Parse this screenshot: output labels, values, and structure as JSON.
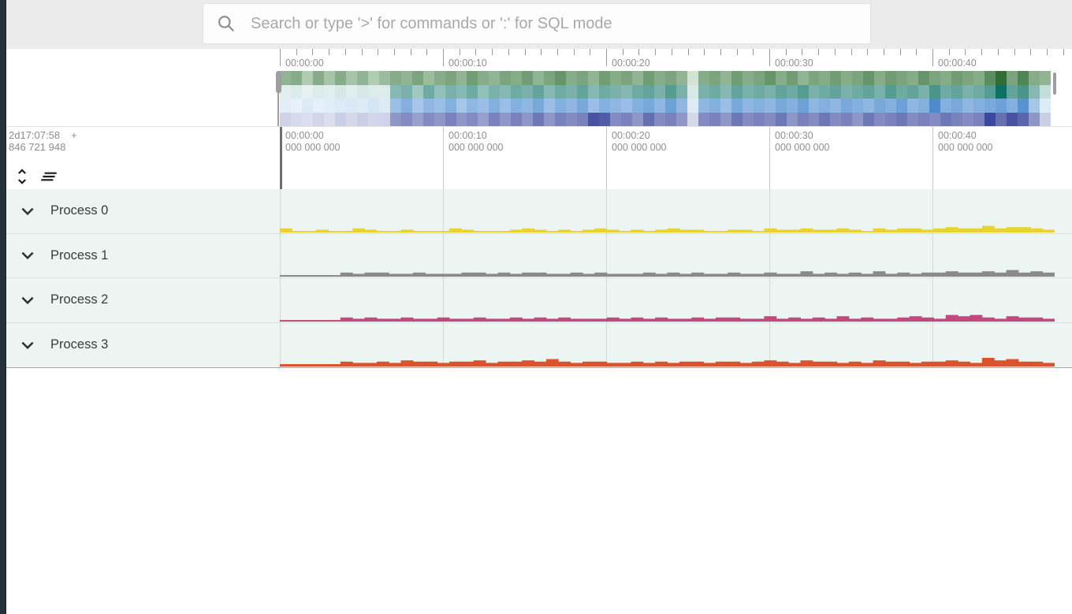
{
  "topbar": {
    "search_placeholder": "Search or type '>' for commands or ':' for SQL mode",
    "search_icon": "magnifier"
  },
  "overview": {
    "ruler_labels": [
      "00:00:00",
      "00:00:10",
      "00:00:20",
      "00:00:30",
      "00:00:40"
    ],
    "seconds_per_major": 10,
    "heatmap_rows": [
      {
        "name": "load-row-green",
        "light": "#f2faf2",
        "dark": "#1b5e20",
        "values": [
          0.45,
          0.5,
          0.3,
          0.5,
          0.35,
          0.5,
          0.35,
          0.45,
          0.3,
          0.4,
          0.5,
          0.45,
          0.55,
          0.4,
          0.5,
          0.55,
          0.45,
          0.6,
          0.5,
          0.45,
          0.55,
          0.5,
          0.6,
          0.45,
          0.55,
          0.65,
          0.5,
          0.55,
          0.45,
          0.6,
          0.5,
          0.55,
          0.45,
          0.6,
          0.5,
          0.55,
          0.45,
          0.15,
          0.5,
          0.55,
          0.45,
          0.6,
          0.5,
          0.55,
          0.65,
          0.5,
          0.6,
          0.45,
          0.55,
          0.5,
          0.6,
          0.5,
          0.55,
          0.65,
          0.5,
          0.6,
          0.55,
          0.5,
          0.65,
          0.55,
          0.5,
          0.6,
          0.55,
          0.5,
          0.7,
          0.9,
          0.55,
          0.75,
          0.5,
          0.45
        ]
      },
      {
        "name": "load-row-teal",
        "light": "#f4fbfa",
        "dark": "#00695c",
        "values": [
          0.08,
          0.1,
          0.06,
          0.1,
          0.08,
          0.12,
          0.08,
          0.12,
          0.1,
          0.1,
          0.45,
          0.5,
          0.35,
          0.55,
          0.4,
          0.5,
          0.45,
          0.55,
          0.4,
          0.5,
          0.45,
          0.55,
          0.5,
          0.6,
          0.45,
          0.55,
          0.5,
          0.6,
          0.45,
          0.55,
          0.5,
          0.45,
          0.55,
          0.6,
          0.5,
          0.65,
          0.5,
          0.12,
          0.5,
          0.55,
          0.45,
          0.6,
          0.5,
          0.55,
          0.5,
          0.6,
          0.55,
          0.65,
          0.5,
          0.55,
          0.6,
          0.5,
          0.55,
          0.6,
          0.5,
          0.65,
          0.55,
          0.6,
          0.5,
          0.7,
          0.55,
          0.6,
          0.5,
          0.55,
          0.65,
          0.95,
          0.6,
          0.7,
          0.45,
          0.2
        ]
      },
      {
        "name": "load-row-blue",
        "light": "#f3fafd",
        "dark": "#1565c0",
        "values": [
          0.08,
          0.06,
          0.1,
          0.07,
          0.08,
          0.1,
          0.12,
          0.1,
          0.14,
          0.1,
          0.4,
          0.5,
          0.35,
          0.45,
          0.4,
          0.5,
          0.35,
          0.45,
          0.4,
          0.5,
          0.4,
          0.5,
          0.45,
          0.55,
          0.4,
          0.5,
          0.45,
          0.55,
          0.4,
          0.5,
          0.45,
          0.4,
          0.5,
          0.55,
          0.45,
          0.6,
          0.45,
          0.1,
          0.45,
          0.5,
          0.4,
          0.55,
          0.45,
          0.5,
          0.45,
          0.55,
          0.5,
          0.6,
          0.45,
          0.5,
          0.45,
          0.55,
          0.5,
          0.45,
          0.55,
          0.5,
          0.6,
          0.45,
          0.5,
          0.75,
          0.5,
          0.55,
          0.45,
          0.5,
          0.55,
          0.6,
          0.5,
          0.7,
          0.35,
          0.1
        ]
      },
      {
        "name": "load-row-indigo",
        "light": "#f4f5fb",
        "dark": "#283593",
        "values": [
          0.18,
          0.14,
          0.12,
          0.16,
          0.12,
          0.2,
          0.15,
          0.2,
          0.16,
          0.18,
          0.5,
          0.55,
          0.45,
          0.55,
          0.5,
          0.6,
          0.5,
          0.55,
          0.45,
          0.6,
          0.5,
          0.6,
          0.5,
          0.65,
          0.5,
          0.6,
          0.55,
          0.6,
          0.85,
          0.8,
          0.55,
          0.6,
          0.5,
          0.7,
          0.55,
          0.6,
          0.5,
          0.15,
          0.55,
          0.6,
          0.5,
          0.65,
          0.55,
          0.6,
          0.55,
          0.65,
          0.5,
          0.6,
          0.55,
          0.65,
          0.55,
          0.6,
          0.5,
          0.65,
          0.55,
          0.6,
          0.65,
          0.55,
          0.6,
          0.55,
          0.65,
          0.6,
          0.55,
          0.6,
          0.9,
          0.7,
          0.85,
          0.75,
          0.5,
          0.2
        ]
      }
    ]
  },
  "time_axis": {
    "offset_hms": "2d17:07:58",
    "offset_plus": "+",
    "offset_ns": "846 721 948",
    "labels": [
      {
        "time": "00:00:00",
        "ns": "000 000 000"
      },
      {
        "time": "00:00:10",
        "ns": "000 000 000"
      },
      {
        "time": "00:00:20",
        "ns": "000 000 000"
      },
      {
        "time": "00:00:30",
        "ns": "000 000 000"
      },
      {
        "time": "00:00:40",
        "ns": "000 000 000"
      }
    ],
    "buttons": [
      {
        "icon": "unfold-more",
        "name": "expand-all-tracks-button"
      },
      {
        "icon": "clear-all",
        "name": "clear-all-button"
      }
    ]
  },
  "tracks": [
    {
      "label": "Process 0",
      "color": "#e8d330",
      "values": [
        2,
        0,
        0,
        1,
        0,
        0,
        2,
        1,
        0,
        0,
        1,
        0,
        0,
        0,
        2,
        1,
        0,
        0,
        0,
        1,
        2,
        1,
        0,
        1,
        0,
        1,
        2,
        1,
        0,
        1,
        0,
        1,
        2,
        1,
        1,
        0,
        0,
        1,
        1,
        0,
        2,
        1,
        1,
        2,
        1,
        1,
        2,
        1,
        0,
        2,
        1,
        2,
        2,
        1,
        2,
        3,
        2,
        2,
        4,
        2,
        3,
        3,
        2,
        1
      ]
    },
    {
      "label": "Process 1",
      "color": "#8a8a8a",
      "values": [
        0,
        0,
        0,
        0,
        0,
        2,
        1,
        2,
        2,
        1,
        1,
        2,
        1,
        1,
        1,
        2,
        2,
        1,
        2,
        1,
        2,
        2,
        1,
        1,
        2,
        1,
        2,
        1,
        1,
        1,
        2,
        1,
        2,
        1,
        2,
        1,
        1,
        2,
        1,
        1,
        2,
        1,
        1,
        3,
        1,
        2,
        1,
        2,
        1,
        3,
        1,
        2,
        1,
        2,
        2,
        3,
        2,
        2,
        3,
        2,
        4,
        2,
        3,
        2
      ]
    },
    {
      "label": "Process 2",
      "color": "#c2487f",
      "values": [
        0,
        0,
        0,
        0,
        0,
        2,
        1,
        2,
        1,
        1,
        2,
        1,
        1,
        2,
        1,
        1,
        2,
        1,
        1,
        2,
        1,
        2,
        1,
        2,
        1,
        1,
        1,
        2,
        1,
        2,
        1,
        2,
        1,
        1,
        2,
        1,
        2,
        2,
        1,
        1,
        3,
        1,
        2,
        1,
        2,
        1,
        3,
        1,
        2,
        1,
        1,
        2,
        3,
        2,
        1,
        4,
        3,
        4,
        2,
        1,
        3,
        2,
        2,
        1
      ]
    },
    {
      "label": "Process 3",
      "color": "#d9532f",
      "values": [
        0,
        0,
        0,
        0,
        0,
        2,
        1,
        1,
        2,
        1,
        3,
        2,
        2,
        1,
        2,
        2,
        3,
        1,
        2,
        2,
        3,
        2,
        4,
        2,
        1,
        2,
        2,
        1,
        1,
        2,
        1,
        2,
        1,
        2,
        2,
        1,
        2,
        2,
        1,
        2,
        3,
        2,
        1,
        3,
        2,
        2,
        1,
        2,
        1,
        3,
        2,
        2,
        1,
        2,
        2,
        3,
        2,
        1,
        5,
        3,
        4,
        2,
        2,
        1
      ]
    }
  ],
  "colors": {
    "sidebar": "#262f3c",
    "topbar_bg": "#ebebeb",
    "track_row_bg": "#ecf5f1",
    "handle": "#9e9e9e",
    "tick": "#9a9a9a",
    "axis_text": "#8f8f8f"
  }
}
